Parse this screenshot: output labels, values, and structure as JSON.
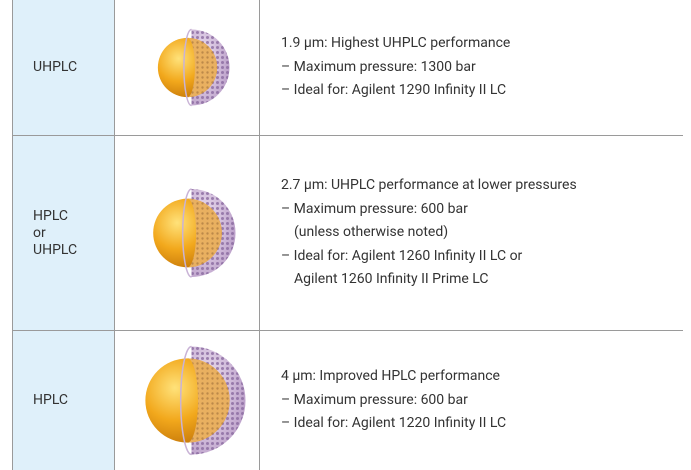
{
  "table": {
    "rows": [
      {
        "label": [
          "UHPLC"
        ],
        "lines": [
          "1.9 µm: Highest UHPLC performance",
          "– Maximum pressure: 1300 bar",
          "– Ideal for: Agilent 1290 Infinity II LC"
        ]
      },
      {
        "label": [
          "HPLC",
          "or",
          "UHPLC"
        ],
        "lines": [
          "2.7 µm: UHPLC performance at lower pressures",
          "– Maximum pressure: 600 bar",
          "(unless otherwise noted)",
          "– Ideal for: Agilent 1260 Infinity II LC or",
          "Agilent 1260 Infinity II Prime LC"
        ]
      },
      {
        "label": [
          "HPLC"
        ],
        "lines": [
          "4 µm: Improved HPLC performance",
          "– Maximum pressure: 600 bar",
          "– Ideal for: Agilent 1220 Infinity II LC"
        ]
      }
    ]
  }
}
